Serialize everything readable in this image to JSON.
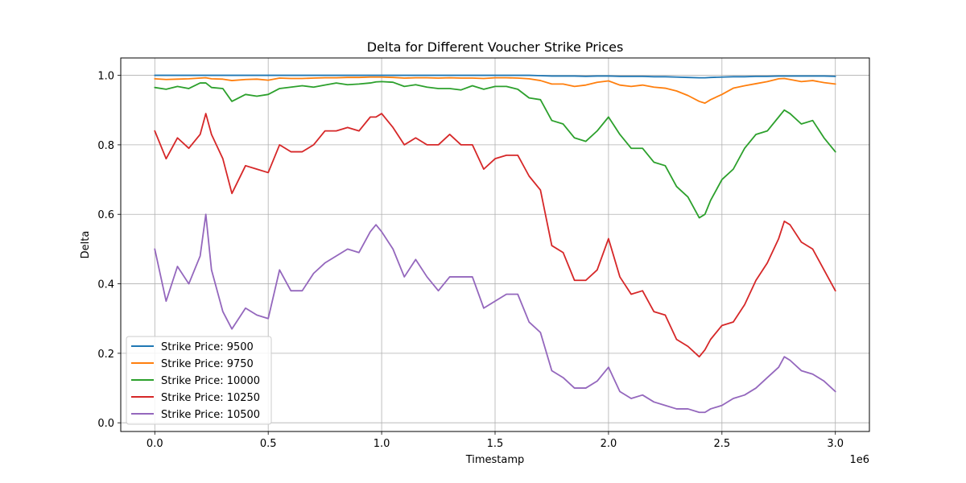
{
  "chart_data": {
    "type": "line",
    "title": "Delta for Different Voucher Strike Prices",
    "xlabel": "Timestamp",
    "ylabel": "Delta",
    "x_offset_label": "1e6",
    "xlim": [
      -150000,
      3150000
    ],
    "ylim": [
      -0.025,
      1.05
    ],
    "x_ticks": [
      0,
      500000,
      1000000,
      1500000,
      2000000,
      2500000,
      3000000
    ],
    "x_tick_labels": [
      "0.0",
      "0.5",
      "1.0",
      "1.5",
      "2.0",
      "2.5",
      "3.0"
    ],
    "y_ticks": [
      0.0,
      0.2,
      0.4,
      0.6,
      0.8,
      1.0
    ],
    "y_tick_labels": [
      "0.0",
      "0.2",
      "0.4",
      "0.6",
      "0.8",
      "1.0"
    ],
    "grid": true,
    "legend_position": "lower-left",
    "x": [
      0,
      50000,
      100000,
      150000,
      200000,
      225000,
      250000,
      300000,
      340000,
      400000,
      450000,
      500000,
      550000,
      600000,
      650000,
      700000,
      750000,
      800000,
      850000,
      900000,
      950000,
      975000,
      1000000,
      1050000,
      1100000,
      1150000,
      1200000,
      1250000,
      1300000,
      1350000,
      1400000,
      1450000,
      1500000,
      1550000,
      1600000,
      1650000,
      1700000,
      1750000,
      1800000,
      1850000,
      1900000,
      1950000,
      2000000,
      2050000,
      2100000,
      2150000,
      2200000,
      2250000,
      2300000,
      2350000,
      2400000,
      2425000,
      2450000,
      2500000,
      2550000,
      2600000,
      2650000,
      2700000,
      2750000,
      2775000,
      2800000,
      2850000,
      2900000,
      2950000,
      3000000
    ],
    "series": [
      {
        "name": "Strike Price: 9500",
        "color": "#1f77b4",
        "values": [
          1.0,
          1.0,
          1.0,
          1.0,
          1.0,
          1.0,
          1.0,
          1.0,
          1.0,
          1.0,
          1.0,
          1.0,
          1.0,
          1.0,
          1.0,
          1.0,
          1.0,
          1.0,
          1.0,
          1.0,
          1.0,
          1.0,
          1.0,
          1.0,
          1.0,
          1.0,
          1.0,
          1.0,
          1.0,
          1.0,
          1.0,
          1.0,
          1.0,
          1.0,
          1.0,
          1.0,
          0.999,
          0.998,
          0.998,
          0.998,
          0.997,
          0.998,
          0.998,
          0.997,
          0.997,
          0.997,
          0.996,
          0.996,
          0.995,
          0.994,
          0.993,
          0.993,
          0.994,
          0.995,
          0.996,
          0.996,
          0.997,
          0.997,
          0.998,
          0.998,
          0.998,
          0.998,
          0.998,
          0.998,
          0.997
        ]
      },
      {
        "name": "Strike Price: 9750",
        "color": "#ff7f0e",
        "values": [
          0.99,
          0.988,
          0.989,
          0.99,
          0.992,
          0.993,
          0.99,
          0.989,
          0.985,
          0.988,
          0.989,
          0.986,
          0.992,
          0.991,
          0.991,
          0.992,
          0.993,
          0.993,
          0.994,
          0.994,
          0.995,
          0.995,
          0.995,
          0.994,
          0.992,
          0.993,
          0.993,
          0.992,
          0.993,
          0.992,
          0.992,
          0.991,
          0.993,
          0.993,
          0.992,
          0.99,
          0.985,
          0.975,
          0.975,
          0.968,
          0.972,
          0.98,
          0.984,
          0.972,
          0.968,
          0.972,
          0.966,
          0.963,
          0.955,
          0.942,
          0.925,
          0.92,
          0.93,
          0.945,
          0.963,
          0.97,
          0.976,
          0.982,
          0.99,
          0.991,
          0.988,
          0.982,
          0.985,
          0.979,
          0.975
        ]
      },
      {
        "name": "Strike Price: 10000",
        "color": "#2ca02c",
        "values": [
          0.965,
          0.96,
          0.968,
          0.962,
          0.978,
          0.978,
          0.965,
          0.962,
          0.925,
          0.945,
          0.94,
          0.945,
          0.962,
          0.966,
          0.97,
          0.966,
          0.972,
          0.978,
          0.973,
          0.975,
          0.978,
          0.981,
          0.982,
          0.98,
          0.968,
          0.973,
          0.966,
          0.962,
          0.962,
          0.958,
          0.97,
          0.96,
          0.968,
          0.968,
          0.96,
          0.935,
          0.93,
          0.87,
          0.86,
          0.82,
          0.81,
          0.84,
          0.88,
          0.83,
          0.79,
          0.79,
          0.75,
          0.74,
          0.68,
          0.65,
          0.59,
          0.6,
          0.64,
          0.7,
          0.73,
          0.79,
          0.83,
          0.84,
          0.88,
          0.9,
          0.89,
          0.86,
          0.87,
          0.82,
          0.78
        ]
      },
      {
        "name": "Strike Price: 10250",
        "color": "#d62728",
        "values": [
          0.84,
          0.76,
          0.82,
          0.79,
          0.83,
          0.89,
          0.83,
          0.76,
          0.66,
          0.74,
          0.73,
          0.72,
          0.8,
          0.78,
          0.78,
          0.8,
          0.84,
          0.84,
          0.85,
          0.84,
          0.88,
          0.88,
          0.89,
          0.85,
          0.8,
          0.82,
          0.8,
          0.8,
          0.83,
          0.8,
          0.8,
          0.73,
          0.76,
          0.77,
          0.77,
          0.71,
          0.67,
          0.51,
          0.49,
          0.41,
          0.41,
          0.44,
          0.53,
          0.42,
          0.37,
          0.38,
          0.32,
          0.31,
          0.24,
          0.22,
          0.19,
          0.21,
          0.24,
          0.28,
          0.29,
          0.34,
          0.41,
          0.46,
          0.53,
          0.58,
          0.57,
          0.52,
          0.5,
          0.44,
          0.38
        ]
      },
      {
        "name": "Strike Price: 10500",
        "color": "#9467bd",
        "values": [
          0.5,
          0.35,
          0.45,
          0.4,
          0.48,
          0.6,
          0.44,
          0.32,
          0.27,
          0.33,
          0.31,
          0.3,
          0.44,
          0.38,
          0.38,
          0.43,
          0.46,
          0.48,
          0.5,
          0.49,
          0.55,
          0.57,
          0.55,
          0.5,
          0.42,
          0.47,
          0.42,
          0.38,
          0.42,
          0.42,
          0.42,
          0.33,
          0.35,
          0.37,
          0.37,
          0.29,
          0.26,
          0.15,
          0.13,
          0.1,
          0.1,
          0.12,
          0.16,
          0.09,
          0.07,
          0.08,
          0.06,
          0.05,
          0.04,
          0.04,
          0.03,
          0.03,
          0.04,
          0.05,
          0.07,
          0.08,
          0.1,
          0.13,
          0.16,
          0.19,
          0.18,
          0.15,
          0.14,
          0.12,
          0.09
        ]
      }
    ]
  }
}
